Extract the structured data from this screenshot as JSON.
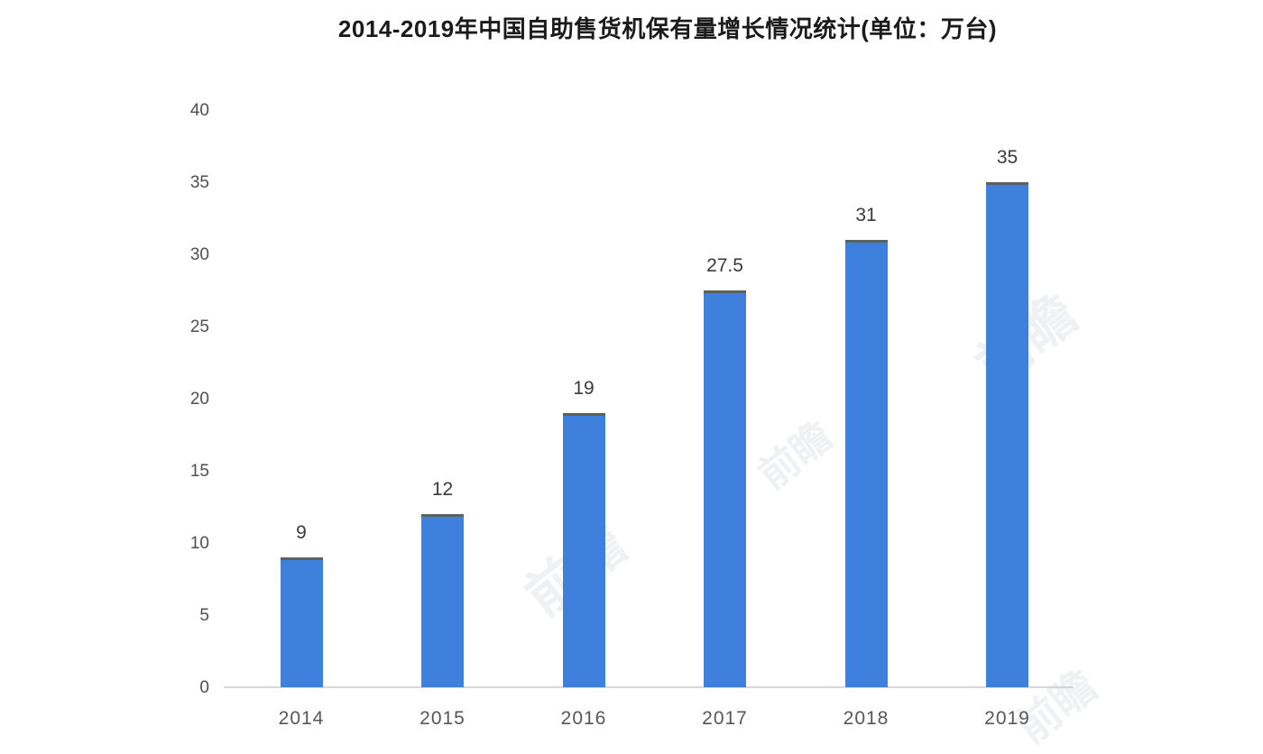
{
  "page": {
    "background_color": "#ffffff"
  },
  "chart_data": {
    "type": "bar",
    "title": "2014-2019年中国自助售货机保有量增长情况统计(单位：万台)",
    "categories": [
      "2014",
      "2015",
      "2016",
      "2017",
      "2018",
      "2019"
    ],
    "values": [
      9,
      12,
      19,
      27.5,
      31,
      35
    ],
    "data_labels": [
      "9",
      "12",
      "19",
      "27.5",
      "31",
      "35"
    ],
    "xlabel": "",
    "ylabel": "",
    "ylim": [
      0,
      40
    ],
    "yticks": [
      0,
      5,
      10,
      15,
      20,
      25,
      30,
      35,
      40
    ],
    "grid": false,
    "legend": "none",
    "bar_color": "#3e80dc",
    "bar_top_edge_color": "#5c635c",
    "axis_line_color": "#d9d9d9",
    "ytick_label_color": "#4f4f4f",
    "xtick_label_color": "#575757",
    "data_label_color": "#3a3a3a",
    "title_color": "#1b1b1b"
  },
  "watermark": {
    "text": "前瞻",
    "color": "rgba(185,190,195,0.22)"
  }
}
